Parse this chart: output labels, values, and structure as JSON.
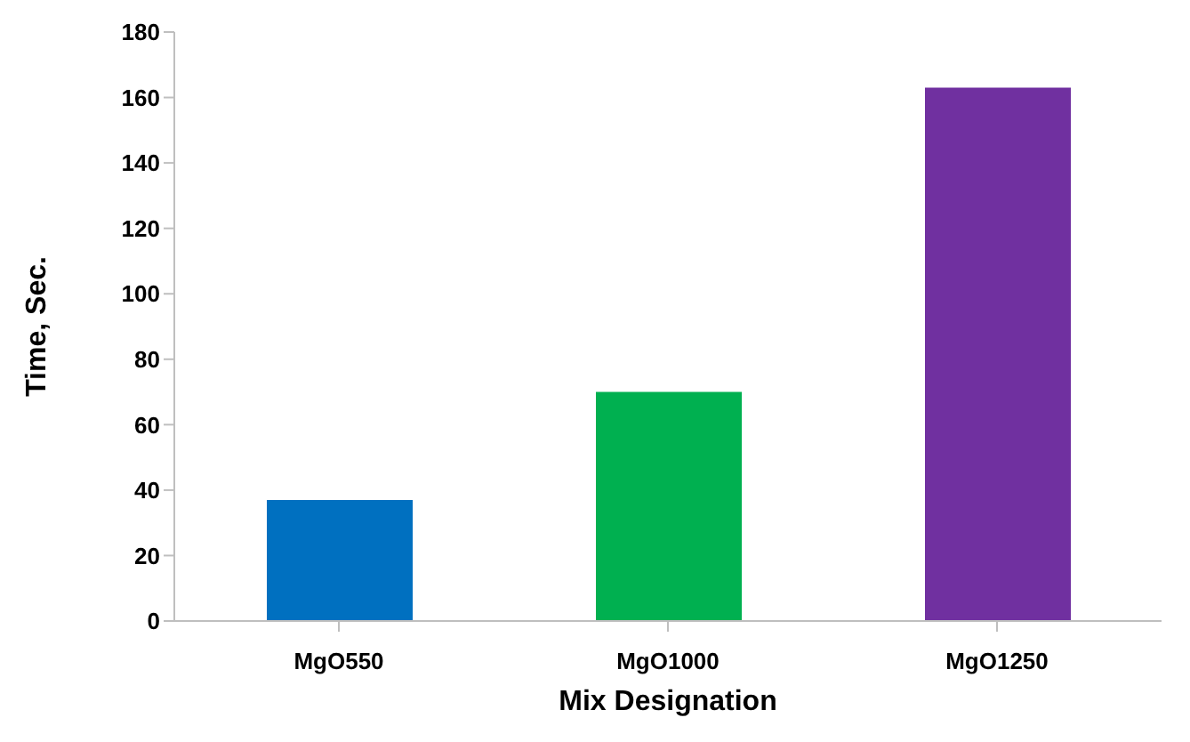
{
  "chart_data": {
    "type": "bar",
    "xlabel": "Mix Designation",
    "ylabel": "Time, Sec.",
    "categories": [
      "MgO550",
      "MgO1000",
      "MgO1250"
    ],
    "values": [
      37,
      70,
      163
    ],
    "colors": [
      "#0070c0",
      "#00b050",
      "#7030a0"
    ],
    "ylim": [
      0,
      180
    ],
    "yticks": [
      0,
      20,
      40,
      60,
      80,
      100,
      120,
      140,
      160,
      180
    ],
    "grid": false,
    "legend": false
  }
}
